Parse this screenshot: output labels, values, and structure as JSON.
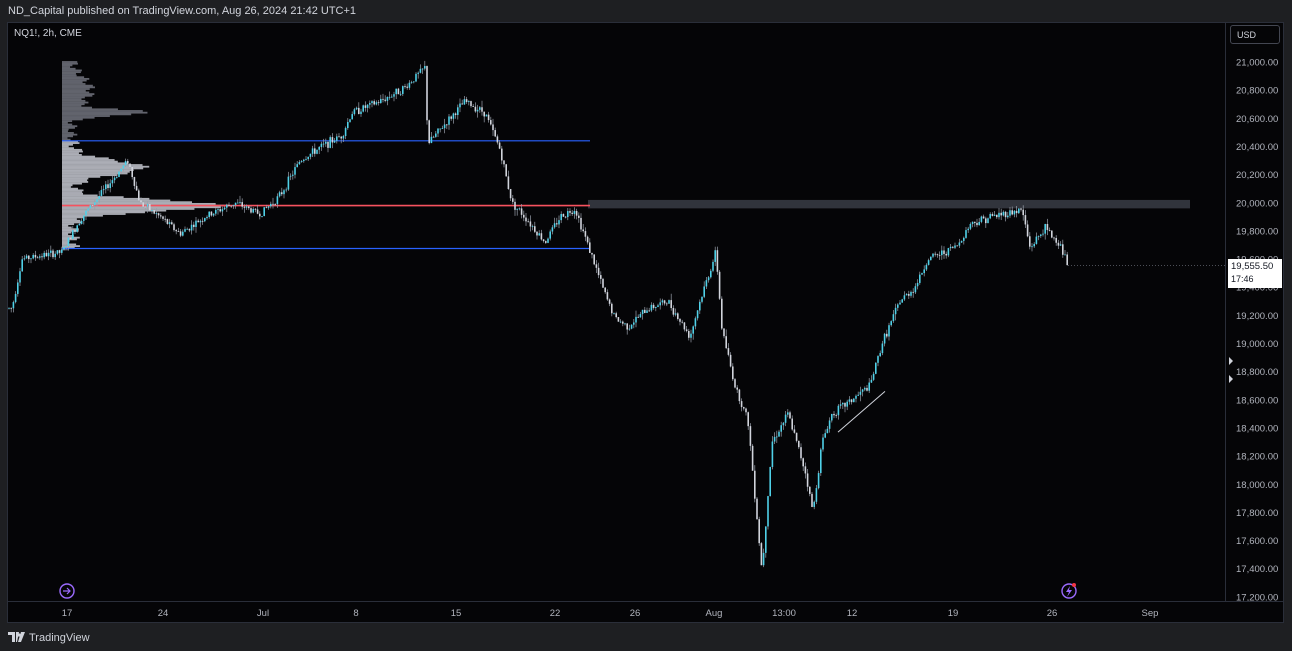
{
  "header": {
    "published_text": "ND_Capital published on TradingView.com, Aug 26, 2024 21:42 UTC+1"
  },
  "symbol": {
    "label": "NQ1!, 2h, CME"
  },
  "currency_button": {
    "label": "USD"
  },
  "last_price": {
    "value": "19,555.50",
    "countdown": "17:46",
    "numeric": 19555.5
  },
  "footer": {
    "brand": "TradingView"
  },
  "colors": {
    "background": "#050507",
    "candle": "#d1d4dc",
    "candle_up_accent": "#4fd1e8",
    "level_line": "#2962ff",
    "poc_line": "#f7525f",
    "zone": "#3a3d45",
    "profile": "#b2b5be"
  },
  "icons": [
    "tradingview-logo-icon",
    "replay-icon",
    "lightning-icon",
    "arrow-right-icon"
  ],
  "chart_data": {
    "type": "candlestick",
    "interval": "2h",
    "x_tick_labels": [
      "17",
      "24",
      "Jul",
      "8",
      "15",
      "22",
      "26",
      "Aug",
      "13:00",
      "12",
      "19",
      "26",
      "Sep"
    ],
    "y_tick_labels": [
      "21,000.00",
      "20,800.00",
      "20,600.00",
      "20,400.00",
      "20,200.00",
      "20,000.00",
      "19,800.00",
      "19,600.00",
      "19,400.00",
      "19,200.00",
      "19,000.00",
      "18,800.00",
      "18,600.00",
      "18,400.00",
      "18,200.00",
      "18,000.00",
      "17,800.00",
      "17,600.00",
      "17,400.00",
      "17,200.00"
    ],
    "ylim": [
      17170,
      21150
    ],
    "price_path": [
      [
        "Jun 14",
        19250
      ],
      [
        "Jun 15",
        19600
      ],
      [
        "Jun 17",
        19650
      ],
      [
        "Jun 18",
        19880
      ],
      [
        "Jun 20",
        20300
      ],
      [
        "Jun 21",
        20000
      ],
      [
        "Jun 23",
        19900
      ],
      [
        "Jun 24",
        19780
      ],
      [
        "Jun 26",
        19900
      ],
      [
        "Jun 28",
        20000
      ],
      [
        "Jul 1",
        19920
      ],
      [
        "Jul 2",
        20050
      ],
      [
        "Jul 3",
        20300
      ],
      [
        "Jul 5",
        20400
      ],
      [
        "Jul 7",
        20480
      ],
      [
        "Jul 8",
        20640
      ],
      [
        "Jul 9",
        20720
      ],
      [
        "Jul 10",
        20820
      ],
      [
        "Jul 11",
        20960
      ],
      [
        "Jul 11b",
        20420
      ],
      [
        "Jul 13",
        20560
      ],
      [
        "Jul 15",
        20720
      ],
      [
        "Jul 16",
        20640
      ],
      [
        "Jul 17",
        20380
      ],
      [
        "Jul 18",
        20000
      ],
      [
        "Jul 19",
        19900
      ],
      [
        "Jul 21",
        19720
      ],
      [
        "Jul 22",
        19900
      ],
      [
        "Jul 23",
        19960
      ],
      [
        "Jul 24",
        19700
      ],
      [
        "Jul 24b",
        19350
      ],
      [
        "Jul 25",
        19180
      ],
      [
        "Jul 26",
        19120
      ],
      [
        "Jul 28",
        19250
      ],
      [
        "Jul 30",
        19300
      ],
      [
        "Jul 31",
        19050
      ],
      [
        "Aug 1",
        19300
      ],
      [
        "Aug 2",
        19650
      ],
      [
        "Aug 2b",
        19100
      ],
      [
        "Aug 4",
        18700
      ],
      [
        "Aug 5",
        18450
      ],
      [
        "Aug 5b",
        17380
      ],
      [
        "Aug 6",
        18300
      ],
      [
        "Aug 7",
        18500
      ],
      [
        "Aug 8",
        18100
      ],
      [
        "Aug 8b",
        17800
      ],
      [
        "Aug 9",
        18300
      ],
      [
        "Aug 10",
        18500
      ],
      [
        "Aug 12",
        18600
      ],
      [
        "Aug 13",
        18700
      ],
      [
        "Aug 14",
        19000
      ],
      [
        "Aug 15",
        19300
      ],
      [
        "Aug 16",
        19400
      ],
      [
        "Aug 18",
        19600
      ],
      [
        "Aug 19",
        19650
      ],
      [
        "Aug 20",
        19700
      ],
      [
        "Aug 21",
        19850
      ],
      [
        "Aug 22",
        19900
      ],
      [
        "Aug 23",
        19950
      ],
      [
        "Aug 23b",
        19680
      ],
      [
        "Aug 24",
        19820
      ],
      [
        "Aug 26",
        19700
      ],
      [
        "Aug 26b",
        19555.5
      ]
    ],
    "levels": [
      {
        "kind": "value-area-high",
        "price": 20440
      },
      {
        "kind": "poc",
        "price": 19980
      },
      {
        "kind": "value-area-low",
        "price": 19675
      }
    ],
    "zone": {
      "price_low": 19960,
      "price_high": 20020
    },
    "trendline": {
      "from": [
        "Aug 11",
        18370
      ],
      "to": [
        "Aug 15",
        18660
      ]
    },
    "grid": false,
    "legend": "none"
  }
}
